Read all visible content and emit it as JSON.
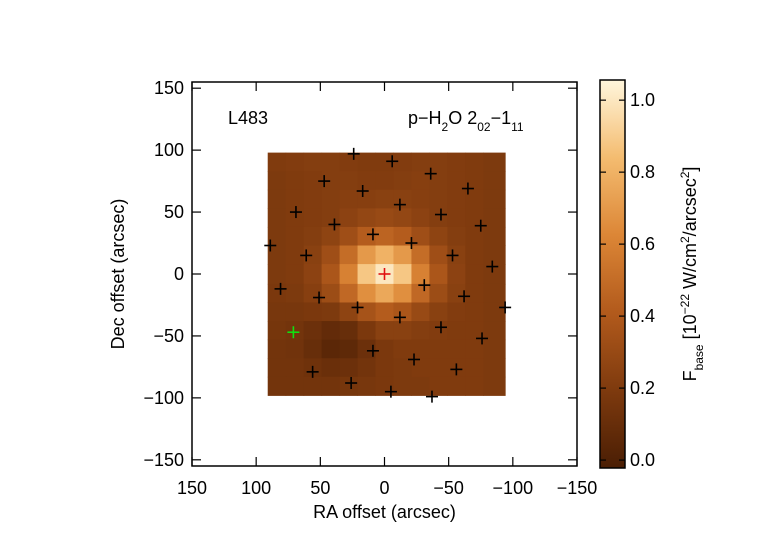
{
  "chart_data": {
    "type": "heatmap",
    "annotation": "L483",
    "line_label": [
      {
        "text": "p−H"
      },
      {
        "text": "2",
        "shift": "sub"
      },
      {
        "text": "O 2"
      },
      {
        "text": "02",
        "shift": "sub"
      },
      {
        "text": "−1"
      },
      {
        "text": "11",
        "shift": "sub"
      }
    ],
    "xlabel": "RA offset (arcsec)",
    "ylabel": "Dec offset (arcsec)",
    "xlim": [
      150,
      -150
    ],
    "ylim": [
      -155,
      155
    ],
    "xticks": [
      150,
      100,
      50,
      0,
      {
        "value": -50,
        "label": "−50"
      },
      {
        "value": -100,
        "label": "−100"
      },
      {
        "value": -150,
        "label": "−150"
      }
    ],
    "yticks": [
      {
        "value": -150,
        "label": "−150"
      },
      {
        "value": -100,
        "label": "−100"
      },
      {
        "value": -50,
        "label": "−50"
      },
      0,
      50,
      100,
      150
    ],
    "xbins": [
      91,
      77,
      63,
      49,
      35,
      21,
      7,
      -7,
      -21,
      -35,
      -49,
      -63,
      -77,
      -94
    ],
    "ybins": [
      98,
      83,
      68,
      53,
      38,
      23,
      8,
      -8,
      -23,
      -38,
      -53,
      -68,
      -83,
      -98
    ],
    "values": [
      [
        0.2,
        0.21,
        0.22,
        0.22,
        0.21,
        0.2,
        0.2,
        0.21,
        0.22,
        0.22,
        0.21,
        0.2,
        0.19
      ],
      [
        0.19,
        0.2,
        0.21,
        0.22,
        0.22,
        0.21,
        0.21,
        0.22,
        0.23,
        0.22,
        0.21,
        0.2,
        0.19
      ],
      [
        0.19,
        0.2,
        0.21,
        0.22,
        0.23,
        0.23,
        0.24,
        0.24,
        0.23,
        0.22,
        0.21,
        0.2,
        0.19
      ],
      [
        0.19,
        0.2,
        0.21,
        0.22,
        0.25,
        0.28,
        0.3,
        0.28,
        0.25,
        0.22,
        0.21,
        0.2,
        0.19
      ],
      [
        0.19,
        0.2,
        0.22,
        0.26,
        0.33,
        0.42,
        0.46,
        0.42,
        0.33,
        0.26,
        0.22,
        0.2,
        0.19
      ],
      [
        0.19,
        0.2,
        0.24,
        0.33,
        0.5,
        0.7,
        0.8,
        0.7,
        0.5,
        0.33,
        0.24,
        0.2,
        0.19
      ],
      [
        0.19,
        0.2,
        0.25,
        0.38,
        0.6,
        0.88,
        1.0,
        0.88,
        0.6,
        0.38,
        0.25,
        0.2,
        0.19
      ],
      [
        0.18,
        0.19,
        0.23,
        0.32,
        0.48,
        0.66,
        0.76,
        0.66,
        0.48,
        0.32,
        0.24,
        0.2,
        0.19
      ],
      [
        0.17,
        0.17,
        0.18,
        0.19,
        0.26,
        0.36,
        0.42,
        0.38,
        0.3,
        0.24,
        0.21,
        0.2,
        0.19
      ],
      [
        0.16,
        0.15,
        0.12,
        0.08,
        0.1,
        0.18,
        0.24,
        0.24,
        0.22,
        0.21,
        0.2,
        0.2,
        0.19
      ],
      [
        0.15,
        0.14,
        0.1,
        0.05,
        0.06,
        0.12,
        0.18,
        0.2,
        0.2,
        0.2,
        0.2,
        0.2,
        0.19
      ],
      [
        0.15,
        0.15,
        0.13,
        0.11,
        0.12,
        0.15,
        0.18,
        0.19,
        0.2,
        0.2,
        0.2,
        0.2,
        0.19
      ],
      [
        0.15,
        0.15,
        0.15,
        0.15,
        0.16,
        0.17,
        0.18,
        0.19,
        0.19,
        0.2,
        0.2,
        0.2,
        0.19
      ]
    ],
    "colormap": [
      "#4a1e04",
      "#7e3a0e",
      "#b25a1c",
      "#dc8636",
      "#f4bc70",
      "#fff6dc"
    ],
    "clim": [
      -0.022,
      1.056
    ],
    "cticks": [
      {
        "value": 0,
        "label": "0.0"
      },
      0.2,
      0.4,
      0.6,
      0.8,
      {
        "value": 1,
        "label": "1.0"
      }
    ],
    "clabel": [
      {
        "text": "F"
      },
      {
        "text": "base",
        "shift": "sub"
      },
      {
        "text": " [10"
      },
      {
        "text": "−22",
        "shift": "super"
      },
      {
        "text": " W/cm"
      },
      {
        "text": "2",
        "shift": "super"
      },
      {
        "text": "/arcsec"
      },
      {
        "text": "2",
        "shift": "super"
      },
      {
        "text": "]"
      }
    ],
    "markers": {
      "color": "#000000",
      "x": [
        24,
        -6,
        -36,
        47,
        -65,
        17,
        -12,
        69,
        -44,
        39,
        -75,
        9,
        89,
        -21,
        61,
        -53,
        -84,
        -31,
        81,
        51,
        -62,
        21,
        -94,
        -12,
        -44,
        9,
        -76,
        -23,
        56,
        -56,
        26,
        -5,
        -37
      ],
      "y": [
        97,
        91,
        81,
        75,
        69,
        67,
        56,
        50,
        48,
        40,
        39,
        32,
        23,
        25,
        15,
        15,
        6,
        -9,
        -12,
        -19,
        -18,
        -27,
        -27,
        -35,
        -43,
        -62,
        -52,
        -69,
        -79,
        -77,
        -88,
        -95,
        -99
      ]
    },
    "highlights": [
      {
        "x": 0,
        "y": 0,
        "color": "#e01010"
      },
      {
        "x": 71,
        "y": -47,
        "color": "#10e010"
      }
    ]
  }
}
